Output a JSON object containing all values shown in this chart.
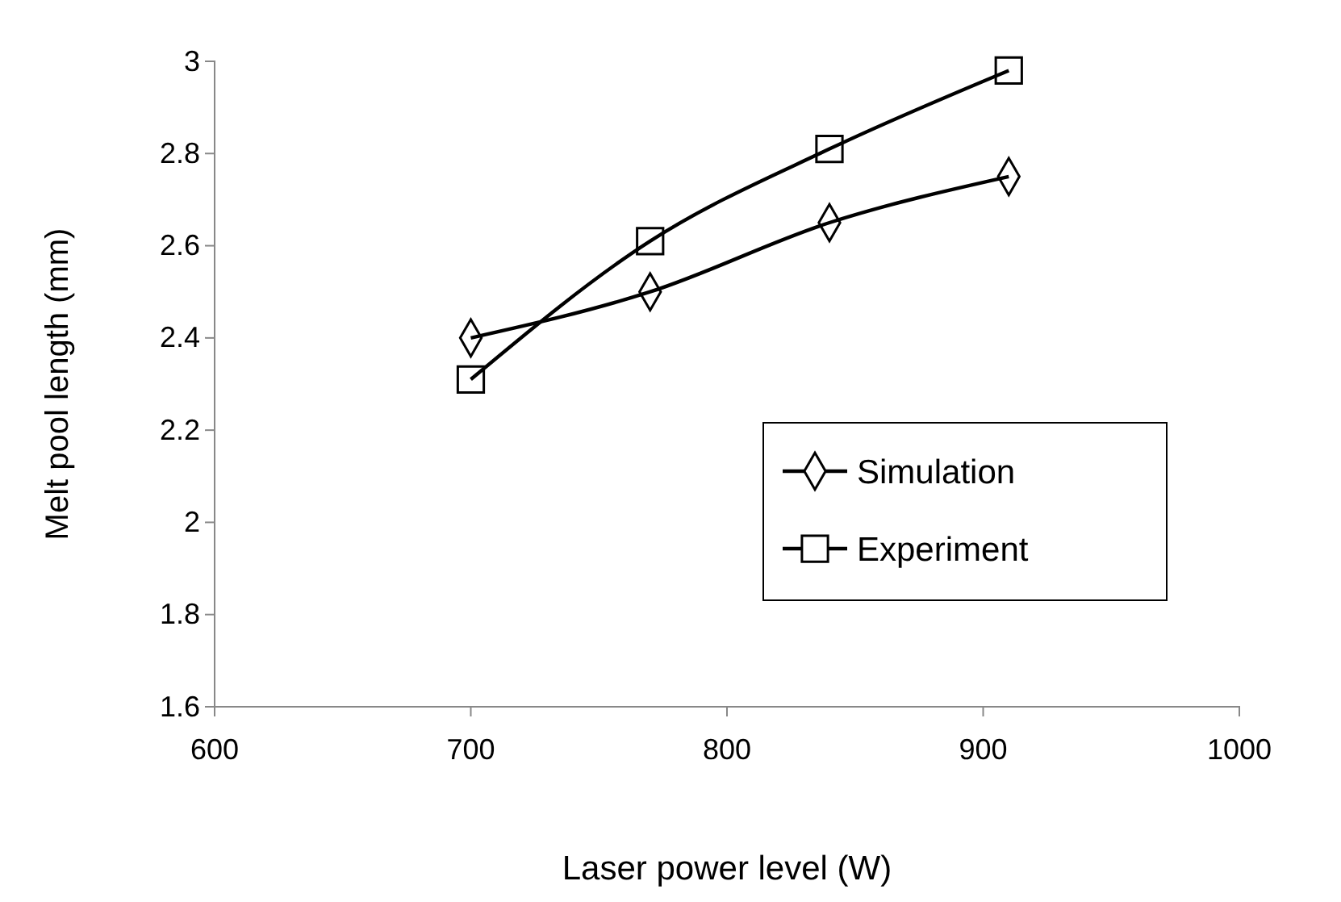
{
  "chart_data": {
    "type": "line",
    "xlabel": "Laser power level (W)",
    "ylabel": "Melt pool length (mm)",
    "x": [
      700,
      770,
      840,
      910
    ],
    "series": [
      {
        "name": "Simulation",
        "color": "#000000",
        "marker": "diamond",
        "values": [
          2.4,
          2.5,
          2.65,
          2.75
        ]
      },
      {
        "name": "Experiment",
        "color": "#000000",
        "marker": "square",
        "values": [
          2.31,
          2.61,
          2.81,
          2.98
        ]
      }
    ],
    "xlim": [
      600,
      1000
    ],
    "xticks": [
      600,
      700,
      800,
      900,
      1000
    ],
    "ylim": [
      1.6,
      3.0
    ],
    "yticks": [
      1.6,
      1.8,
      2,
      2.2,
      2.4,
      2.6,
      2.8,
      {
        "value": 3.0,
        "label": "3"
      }
    ],
    "legend": "right",
    "grid": false
  }
}
